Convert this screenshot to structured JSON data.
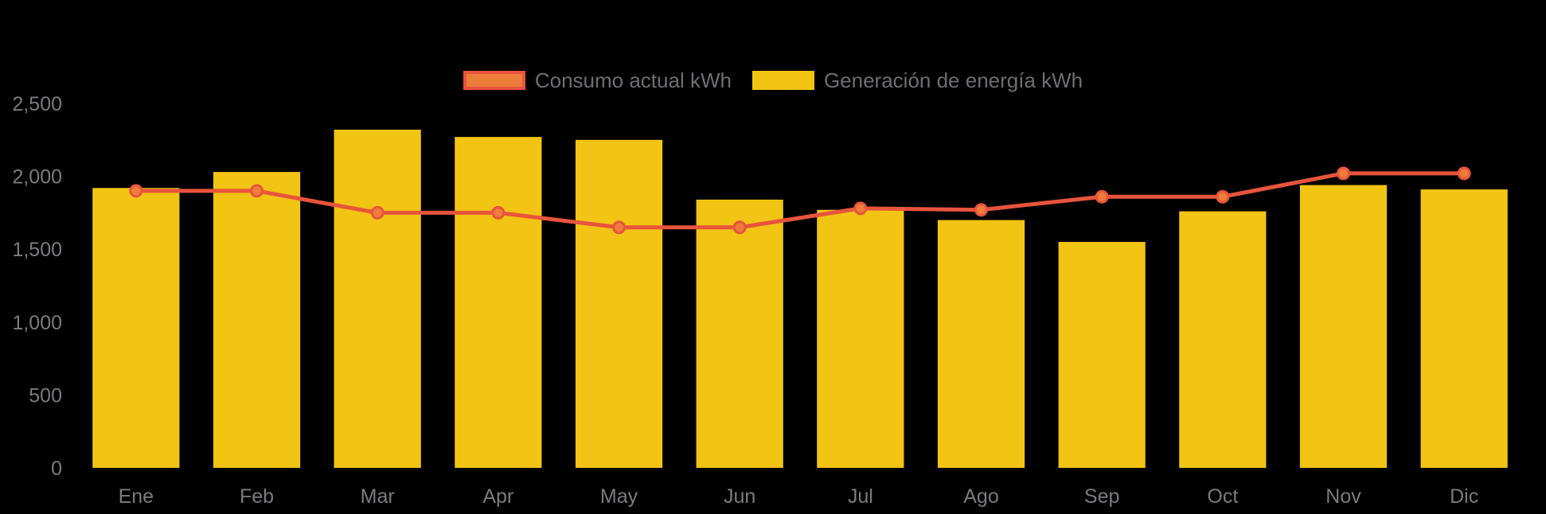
{
  "colors": {
    "background": "#000000",
    "bar": "#F2C413",
    "line": "#E8543C",
    "point_fill": "#EE7C3B",
    "axis_text": "#7A7B7E",
    "legend_text": "#6D6E71"
  },
  "legend": {
    "items": [
      {
        "label": "Consumo actual kWh",
        "series": "consumo"
      },
      {
        "label": "Generación de energía kWh",
        "series": "generacion"
      }
    ]
  },
  "chart_data": {
    "type": "bar+line",
    "title": "",
    "xlabel": "",
    "ylabel": "",
    "categories": [
      "Ene",
      "Feb",
      "Mar",
      "Apr",
      "May",
      "Jun",
      "Jul",
      "Ago",
      "Sep",
      "Oct",
      "Nov",
      "Dic"
    ],
    "series": [
      {
        "name": "Consumo actual kWh",
        "type": "line",
        "color": "#E8543C",
        "values": [
          1900,
          1900,
          1750,
          1750,
          1650,
          1650,
          1780,
          1770,
          1860,
          1860,
          2020,
          2020
        ]
      },
      {
        "name": "Generación de energía kWh",
        "type": "bar",
        "color": "#F2C413",
        "values": [
          1920,
          2030,
          2320,
          2270,
          2250,
          1840,
          1770,
          1700,
          1550,
          1760,
          1940,
          1910
        ]
      }
    ],
    "ylim": [
      0,
      2500
    ],
    "yticks": [
      {
        "value": 0,
        "label": "0"
      },
      {
        "value": 500,
        "label": "500"
      },
      {
        "value": 1000,
        "label": "1,000"
      },
      {
        "value": 1500,
        "label": "1,500"
      },
      {
        "value": 2000,
        "label": "2,000"
      },
      {
        "value": 2500,
        "label": "2,500"
      }
    ],
    "grid": false,
    "legend_position": "top-center"
  }
}
